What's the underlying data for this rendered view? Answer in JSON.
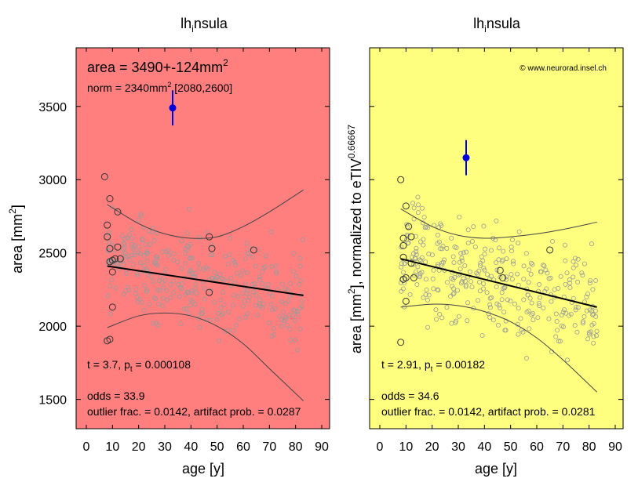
{
  "panels": [
    {
      "title_main": "lh",
      "title_sub": "i",
      "title_rest": "nsula",
      "ylabel": "area [mm",
      "ylabel_sup": "2",
      "ylabel_end": "]",
      "xlabel": "age [y]",
      "background": "#ff7f7f",
      "copyright": "",
      "big_stat_text": "area = 3490+-124mm",
      "big_stat_sup": "2",
      "norm_text": "norm = 2340mm",
      "norm_sup": "2",
      "norm_range": " [2080,2600]",
      "t_text": "t = 3.7, p",
      "t_sub": "t",
      "t_end": " = 0.000108",
      "odds_text": "odds = 33.9",
      "outlier_text": "outlier frac. = 0.0142, artifact prob. = 0.0287"
    },
    {
      "title_main": "lh",
      "title_sub": "i",
      "title_rest": "nsula",
      "ylabel": "area [mm",
      "ylabel_sup": "2",
      "ylabel_end": "], normalized to eTIV",
      "ylabel_exp": "0.66667",
      "xlabel": "age [y]",
      "background": "#ffff7f",
      "copyright": "© www.neurorad.insel.ch",
      "big_stat_text": "",
      "big_stat_sup": "",
      "norm_text": "",
      "norm_sup": "",
      "norm_range": "",
      "t_text": "t = 2.91, p",
      "t_sub": "t",
      "t_end": " = 0.00182",
      "odds_text": "odds = 34.6",
      "outlier_text": "outlier frac. = 0.0142, artifact prob. = 0.0281"
    }
  ],
  "chart_data": [
    {
      "type": "scatter",
      "xlim": [
        0,
        90
      ],
      "ylim": [
        1300,
        3900
      ],
      "x_ticks": [
        0,
        10,
        20,
        30,
        40,
        50,
        60,
        70,
        80,
        90
      ],
      "y_ticks": [
        1500,
        2000,
        2500,
        3000,
        3500
      ],
      "subject": {
        "x": 33,
        "y": 3490,
        "err_low": 3370,
        "err_high": 3610,
        "color": "#0000dd"
      },
      "regression": {
        "x": [
          8,
          83
        ],
        "y": [
          2410,
          2210
        ]
      },
      "upper_band": {
        "x": [
          8,
          20,
          30,
          40,
          50,
          60,
          70,
          83
        ],
        "y": [
          2830,
          2700,
          2630,
          2600,
          2610,
          2680,
          2780,
          2930
        ]
      },
      "lower_band": {
        "x": [
          8,
          20,
          30,
          40,
          50,
          60,
          70,
          83
        ],
        "y": [
          1990,
          2070,
          2090,
          2070,
          2000,
          1880,
          1710,
          1490
        ]
      },
      "large_points": {
        "x": [
          7,
          8,
          8,
          9,
          9,
          9,
          10,
          10,
          11,
          12,
          12,
          13,
          8,
          9,
          10,
          47,
          48,
          47,
          64
        ],
        "y": [
          3020,
          2690,
          2610,
          2440,
          2870,
          2530,
          2370,
          2450,
          2460,
          2780,
          2540,
          2460,
          1900,
          1910,
          2130,
          2610,
          2530,
          2230,
          2520
        ]
      }
    },
    {
      "type": "scatter",
      "xlim": [
        0,
        90
      ],
      "ylim": [
        1300,
        3900
      ],
      "x_ticks": [
        0,
        10,
        20,
        30,
        40,
        50,
        60,
        70,
        80,
        90
      ],
      "y_ticks": [
        1500,
        2000,
        2500,
        3000,
        3500
      ],
      "subject": {
        "x": 33,
        "y": 3150,
        "err_low": 3030,
        "err_high": 3270,
        "color": "#0000dd"
      },
      "regression": {
        "x": [
          8,
          83
        ],
        "y": [
          2460,
          2130
        ]
      },
      "upper_band": {
        "x": [
          8,
          20,
          30,
          40,
          50,
          60,
          70,
          83
        ],
        "y": [
          2800,
          2680,
          2620,
          2600,
          2610,
          2630,
          2660,
          2710
        ]
      },
      "lower_band": {
        "x": [
          8,
          20,
          30,
          40,
          50,
          60,
          70,
          83
        ],
        "y": [
          2130,
          2150,
          2140,
          2100,
          2030,
          1920,
          1770,
          1550
        ]
      },
      "large_points": {
        "x": [
          8,
          9,
          9,
          10,
          10,
          11,
          12,
          12,
          13,
          8,
          9,
          46,
          47,
          65,
          9,
          10
        ],
        "y": [
          3000,
          2600,
          2550,
          2330,
          2820,
          2680,
          2610,
          2430,
          2330,
          1890,
          2470,
          2380,
          2330,
          2520,
          2320,
          2170
        ]
      }
    }
  ]
}
